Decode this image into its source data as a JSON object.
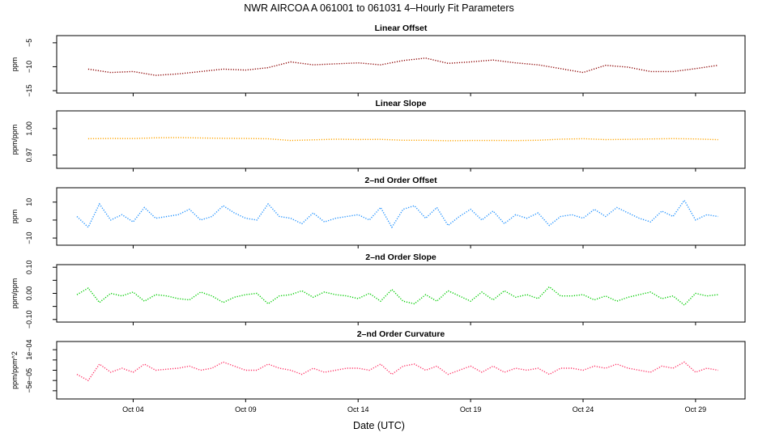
{
  "title": "NWR   AIRCOA A   061001 to 061031   4–Hourly Fit Parameters",
  "xlabel": "Date (UTC)",
  "x_ticks": [
    "Oct 04",
    "Oct 09",
    "Oct 14",
    "Oct 19",
    "Oct 24",
    "Oct 29"
  ],
  "chart_data": [
    {
      "type": "line",
      "title": "Linear Offset",
      "ylabel": "ppm",
      "color": "#8b0000",
      "ylim": [
        -15.5,
        -3.5
      ],
      "yticks": [
        -15,
        -10,
        -5
      ],
      "ytick_labels": [
        "−15",
        "−10",
        "−5"
      ],
      "xlim": [
        0.6,
        31.2
      ],
      "series": [
        {
          "x": [
            2,
            3,
            4,
            5,
            6,
            7,
            8,
            9,
            10,
            11,
            12,
            13,
            14,
            15,
            16,
            17,
            18,
            19,
            20,
            21,
            22,
            23,
            24,
            25,
            26,
            27,
            28,
            29,
            30
          ],
          "values": [
            -10.5,
            -11.2,
            -11.0,
            -11.8,
            -11.5,
            -11.0,
            -10.5,
            -10.7,
            -10.2,
            -9.0,
            -9.6,
            -9.4,
            -9.2,
            -9.6,
            -8.7,
            -8.2,
            -9.3,
            -9.0,
            -8.6,
            -9.2,
            -9.6,
            -10.4,
            -11.2,
            -9.7,
            -10.1,
            -11.0,
            -11.0,
            -10.4,
            -9.7
          ]
        }
      ]
    },
    {
      "type": "line",
      "title": "Linear Slope",
      "ylabel": "ppm/ppm",
      "color": "#ffa500",
      "ylim": [
        0.955,
        1.02
      ],
      "yticks": [
        0.97,
        1.0
      ],
      "ytick_labels": [
        "0.97",
        "1.00"
      ],
      "xlim": [
        0.6,
        31.2
      ],
      "series": [
        {
          "x": [
            2,
            3,
            4,
            5,
            6,
            7,
            8,
            9,
            10,
            11,
            12,
            13,
            14,
            15,
            16,
            17,
            18,
            19,
            20,
            21,
            22,
            23,
            24,
            25,
            26,
            27,
            28,
            29,
            30
          ],
          "values": [
            0.9885,
            0.9888,
            0.9887,
            0.9895,
            0.9898,
            0.9893,
            0.989,
            0.9888,
            0.9884,
            0.9865,
            0.9872,
            0.988,
            0.9876,
            0.9878,
            0.9868,
            0.9868,
            0.9862,
            0.9865,
            0.9866,
            0.9864,
            0.9868,
            0.988,
            0.9885,
            0.9875,
            0.9878,
            0.9882,
            0.9886,
            0.9882,
            0.9874
          ]
        }
      ]
    },
    {
      "type": "line",
      "title": "2–nd Order Offset",
      "ylabel": "ppm",
      "color": "#1e90ff",
      "ylim": [
        -14,
        18
      ],
      "yticks": [
        -10,
        0,
        10
      ],
      "ytick_labels": [
        "−10",
        "0",
        "10"
      ],
      "xlim": [
        0.6,
        31.2
      ],
      "series": [
        {
          "x": [
            1.5,
            2.0,
            2.5,
            3.0,
            3.5,
            4.0,
            4.5,
            5.0,
            5.5,
            6.0,
            6.5,
            7.0,
            7.5,
            8.0,
            8.5,
            9.0,
            9.5,
            10.0,
            10.5,
            11.0,
            11.5,
            12.0,
            12.5,
            13.0,
            13.5,
            14.0,
            14.5,
            15.0,
            15.5,
            16.0,
            16.5,
            17.0,
            17.5,
            18.0,
            18.5,
            19.0,
            19.5,
            20.0,
            20.5,
            21.0,
            21.5,
            22.0,
            22.5,
            23.0,
            23.5,
            24.0,
            24.5,
            25.0,
            25.5,
            26.0,
            26.5,
            27.0,
            27.5,
            28.0,
            28.5,
            29.0,
            29.5,
            30.0
          ],
          "values": [
            2,
            -4,
            9,
            0,
            3,
            -1,
            7,
            1,
            2,
            3,
            6,
            0,
            2,
            8,
            4,
            1,
            0,
            9,
            2,
            1,
            -2,
            4,
            -1,
            1,
            2,
            3,
            0,
            7,
            -4,
            6,
            8,
            1,
            7,
            -3,
            2,
            6,
            0,
            5,
            -2,
            3,
            1,
            4,
            -3,
            2,
            3,
            1,
            6,
            2,
            7,
            4,
            1,
            -1,
            5,
            2,
            11,
            0,
            3,
            2
          ]
        }
      ]
    },
    {
      "type": "line",
      "title": "2–nd Order Slope",
      "ylabel": "ppm/ppm",
      "color": "#00cc00",
      "ylim": [
        -0.11,
        0.11
      ],
      "yticks": [
        -0.1,
        -0.05,
        0.0,
        0.05,
        0.1
      ],
      "ytick_labels": [
        "−0.10",
        "",
        "0.00",
        "",
        "0.10"
      ],
      "xlim": [
        0.6,
        31.2
      ],
      "series": [
        {
          "x": [
            1.5,
            2.0,
            2.5,
            3.0,
            3.5,
            4.0,
            4.5,
            5.0,
            5.5,
            6.0,
            6.5,
            7.0,
            7.5,
            8.0,
            8.5,
            9.0,
            9.5,
            10.0,
            10.5,
            11.0,
            11.5,
            12.0,
            12.5,
            13.0,
            13.5,
            14.0,
            14.5,
            15.0,
            15.5,
            16.0,
            16.5,
            17.0,
            17.5,
            18.0,
            18.5,
            19.0,
            19.5,
            20.0,
            20.5,
            21.0,
            21.5,
            22.0,
            22.5,
            23.0,
            23.5,
            24.0,
            24.5,
            25.0,
            25.5,
            26.0,
            26.5,
            27.0,
            27.5,
            28.0,
            28.5,
            29.0,
            29.5,
            30.0
          ],
          "values": [
            -0.005,
            0.02,
            -0.035,
            0.0,
            -0.01,
            0.005,
            -0.03,
            -0.005,
            -0.01,
            -0.02,
            -0.025,
            0.005,
            -0.01,
            -0.035,
            -0.015,
            -0.005,
            0.0,
            -0.04,
            -0.01,
            -0.005,
            0.01,
            -0.015,
            0.005,
            -0.005,
            -0.01,
            -0.02,
            0.0,
            -0.03,
            0.015,
            -0.03,
            -0.04,
            -0.005,
            -0.03,
            0.01,
            -0.01,
            -0.03,
            0.005,
            -0.025,
            0.01,
            -0.015,
            -0.005,
            -0.02,
            0.025,
            -0.01,
            -0.01,
            -0.005,
            -0.025,
            -0.01,
            -0.03,
            -0.015,
            -0.005,
            0.005,
            -0.02,
            -0.01,
            -0.045,
            0.0,
            -0.01,
            -0.005
          ]
        }
      ]
    },
    {
      "type": "line",
      "title": "2–nd Order Curvature",
      "ylabel": "ppm/ppm^2",
      "color": "#ff3366",
      "ylim": [
        -0.00014,
        0.00014
      ],
      "yticks": [
        -0.0001,
        -5e-05,
        0,
        5e-05,
        0.0001
      ],
      "ytick_labels": [
        "",
        "−5e−05",
        "",
        "",
        "1e−04"
      ],
      "xlim": [
        0.6,
        31.2
      ],
      "series": [
        {
          "x": [
            1.5,
            2.0,
            2.5,
            3.0,
            3.5,
            4.0,
            4.5,
            5.0,
            5.5,
            6.0,
            6.5,
            7.0,
            7.5,
            8.0,
            8.5,
            9.0,
            9.5,
            10.0,
            10.5,
            11.0,
            11.5,
            12.0,
            12.5,
            13.0,
            13.5,
            14.0,
            14.5,
            15.0,
            15.5,
            16.0,
            16.5,
            17.0,
            17.5,
            18.0,
            18.5,
            19.0,
            19.5,
            20.0,
            20.5,
            21.0,
            21.5,
            22.0,
            22.5,
            23.0,
            23.5,
            24.0,
            24.5,
            25.0,
            25.5,
            26.0,
            26.5,
            27.0,
            27.5,
            28.0,
            28.5,
            29.0,
            29.5,
            30.0
          ],
          "values": [
            -2e-05,
            -5e-05,
            3e-05,
            -1e-05,
            1e-05,
            -1e-05,
            3e-05,
            0,
            5e-06,
            1e-05,
            2e-05,
            0,
            1e-05,
            4e-05,
            2e-05,
            0,
            0,
            3e-05,
            1e-05,
            0,
            -2e-05,
            1e-05,
            -1e-05,
            0,
            1e-05,
            1e-05,
            0,
            3e-05,
            -2e-05,
            2e-05,
            3e-05,
            0,
            2e-05,
            -2e-05,
            0,
            2e-05,
            -1e-05,
            2e-05,
            -1e-05,
            1e-05,
            0,
            1e-05,
            -2e-05,
            1e-05,
            1e-05,
            0,
            2e-05,
            1e-05,
            3e-05,
            1e-05,
            0,
            -1e-05,
            2e-05,
            1e-05,
            4e-05,
            -1e-05,
            1e-05,
            0
          ]
        }
      ]
    }
  ]
}
